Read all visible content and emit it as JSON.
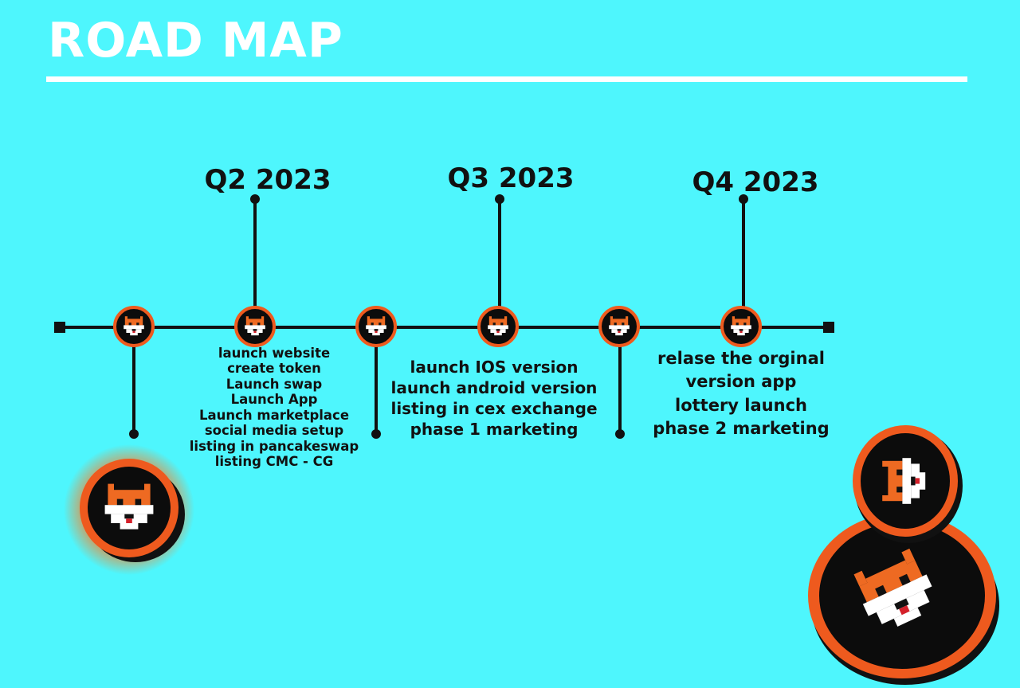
{
  "title": "ROAD MAP",
  "colors": {
    "background": "#4ef6fd",
    "line": "#111111",
    "node_ring": "#ee5a1e",
    "node_fill": "#0c0c0c",
    "fox_orange": "#ee6a22",
    "title_text": "#ffffff"
  },
  "phases": [
    {
      "quarter": "Q2 2023",
      "items": [
        "launch website",
        "create token",
        "Launch swap",
        "Launch App",
        "Launch marketplace",
        "social media setup",
        "listing in pancakeswap",
        "listing CMC - CG"
      ]
    },
    {
      "quarter": "Q3 2023",
      "items": [
        "launch IOS version",
        "launch android version",
        "listing in cex exchange",
        "phase 1 marketing"
      ]
    },
    {
      "quarter": "Q4 2023",
      "items": [
        "relase the orginal",
        "version app",
        "lottery launch",
        "phase 2 marketing"
      ]
    }
  ],
  "icons": {
    "timeline_node": "fox-coin-icon",
    "decor_coin": "fox-coin-icon"
  }
}
